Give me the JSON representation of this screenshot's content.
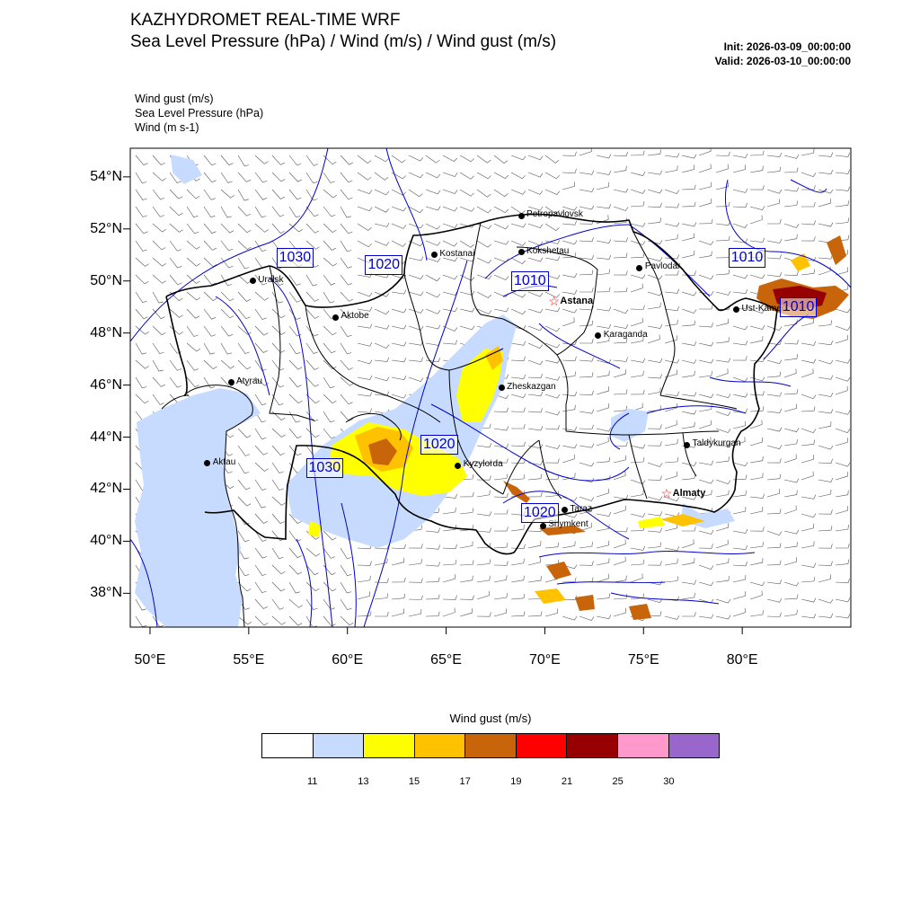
{
  "header": {
    "title": "KAZHYDROMET REAL-TIME WRF",
    "subtitle": "Sea Level Pressure  (hPa) / Wind  (m/s) / Wind gust  (m/s)",
    "init": "Init: 2026-03-09_00:00:00",
    "valid": "Valid: 2026-03-10_00:00:00"
  },
  "fields": [
    "Wind gust   (m/s)",
    "Sea Level Pressure   (hPa)",
    "Wind   (m s-1)"
  ],
  "axes": {
    "lat": [
      {
        "value": 54,
        "label": "54°N"
      },
      {
        "value": 52,
        "label": "52°N"
      },
      {
        "value": 50,
        "label": "50°N"
      },
      {
        "value": 48,
        "label": "48°N"
      },
      {
        "value": 46,
        "label": "46°N"
      },
      {
        "value": 44,
        "label": "44°N"
      },
      {
        "value": 42,
        "label": "42°N"
      },
      {
        "value": 40,
        "label": "40°N"
      },
      {
        "value": 38,
        "label": "38°N"
      }
    ],
    "lon": [
      {
        "value": 50,
        "label": "50°E"
      },
      {
        "value": 55,
        "label": "55°E"
      },
      {
        "value": 60,
        "label": "60°E"
      },
      {
        "value": 65,
        "label": "65°E"
      },
      {
        "value": 70,
        "label": "70°E"
      },
      {
        "value": 75,
        "label": "75°E"
      },
      {
        "value": 80,
        "label": "80°E"
      }
    ],
    "lon_range": [
      49,
      85.5
    ],
    "lat_range": [
      36.7,
      55.1
    ]
  },
  "cities": [
    {
      "name": "Petropavlovsk",
      "lon": 68.8,
      "lat": 52.5,
      "capital": false
    },
    {
      "name": "Kostanai",
      "lon": 64.4,
      "lat": 51.0,
      "capital": false
    },
    {
      "name": "Kokshetau",
      "lon": 68.8,
      "lat": 51.1,
      "capital": false
    },
    {
      "name": "Pavlodar",
      "lon": 74.8,
      "lat": 50.5,
      "capital": false
    },
    {
      "name": "Uralsk",
      "lon": 55.2,
      "lat": 50.0,
      "capital": false
    },
    {
      "name": "Astana",
      "lon": 70.5,
      "lat": 49.2,
      "capital": true
    },
    {
      "name": "Aktobe",
      "lon": 59.4,
      "lat": 48.6,
      "capital": false
    },
    {
      "name": "Ust-Kamen",
      "lon": 79.7,
      "lat": 48.9,
      "capital": false
    },
    {
      "name": "Karaganda",
      "lon": 72.7,
      "lat": 47.9,
      "capital": false
    },
    {
      "name": "Atyrau",
      "lon": 54.1,
      "lat": 46.1,
      "capital": false
    },
    {
      "name": "Zheskazgan",
      "lon": 67.8,
      "lat": 45.9,
      "capital": false
    },
    {
      "name": "Taldykurgan",
      "lon": 77.2,
      "lat": 43.7,
      "capital": false
    },
    {
      "name": "Aktau",
      "lon": 52.9,
      "lat": 43.0,
      "capital": false
    },
    {
      "name": "Kyzylorda",
      "lon": 65.6,
      "lat": 42.9,
      "capital": false
    },
    {
      "name": "Almaty",
      "lon": 76.2,
      "lat": 41.8,
      "capital": true
    },
    {
      "name": "Taraz",
      "lon": 71.0,
      "lat": 41.2,
      "capital": false
    },
    {
      "name": "Shymkent",
      "lon": 69.9,
      "lat": 40.6,
      "capital": false
    }
  ],
  "isobar_labels": [
    {
      "text": "1030",
      "lon": 57.4,
      "lat": 50.9
    },
    {
      "text": "1020",
      "lon": 61.9,
      "lat": 50.6
    },
    {
      "text": "1010",
      "lon": 69.3,
      "lat": 50.0
    },
    {
      "text": "1010",
      "lon": 80.3,
      "lat": 50.9
    },
    {
      "text": "1010",
      "lon": 82.9,
      "lat": 49.0
    },
    {
      "text": "1020",
      "lon": 64.7,
      "lat": 43.7
    },
    {
      "text": "1030",
      "lon": 58.9,
      "lat": 42.8
    },
    {
      "text": "1020",
      "lon": 69.8,
      "lat": 41.1
    }
  ],
  "colorbar": {
    "title": "Wind gust (m/s)",
    "colors": [
      "#ffffff",
      "#c6dbff",
      "#ffff00",
      "#ffc200",
      "#c8640a",
      "#ff0000",
      "#960000",
      "#ff99cc",
      "#9966cc"
    ],
    "labels": [
      "11",
      "13",
      "15",
      "17",
      "19",
      "21",
      "25",
      "30"
    ]
  },
  "colors": {
    "isobar": "#0000cc",
    "border": "#000000",
    "barb": "#555555",
    "capital_marker": "#ff0000"
  }
}
